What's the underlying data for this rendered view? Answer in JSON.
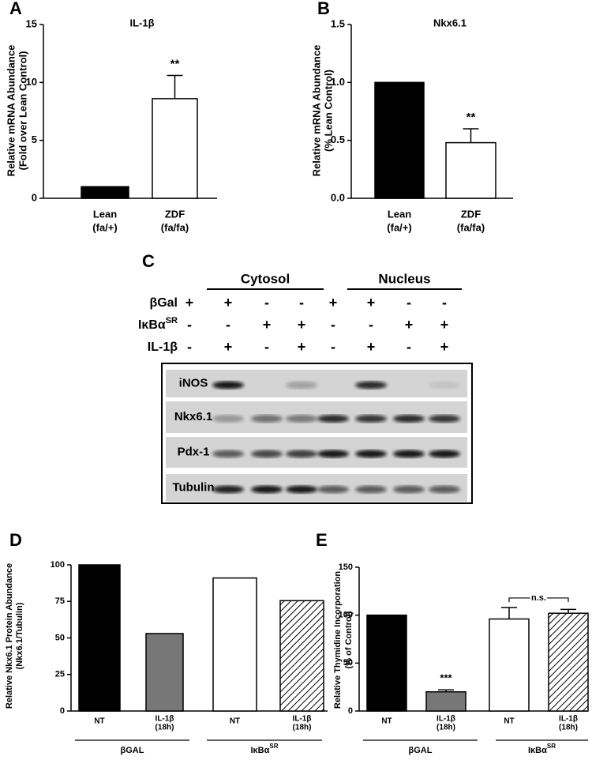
{
  "chart_data": [
    {
      "type": "bar",
      "label": "A",
      "title": "IL-1β",
      "ylabel": [
        "Relative mRNA Abundance",
        "(Fold over Lean Control)"
      ],
      "categories": [
        [
          "Lean",
          "(fa/+)"
        ],
        [
          "ZDF",
          "(fa/fa)"
        ]
      ],
      "values": [
        1,
        8.6
      ],
      "errors": [
        null,
        2.0
      ],
      "colors": [
        "#000000",
        "#ffffff"
      ],
      "hatch": [
        false,
        false
      ],
      "annotations": [
        {
          "index": 1,
          "text": "**"
        }
      ],
      "ylim": [
        0,
        15
      ],
      "yticks": [
        0,
        5,
        10,
        15
      ]
    },
    {
      "type": "bar",
      "label": "B",
      "title": "Nkx6.1",
      "ylabel": [
        "Relative mRNA Abundance",
        "(% Lean Control)"
      ],
      "categories": [
        [
          "Lean",
          "(fa/+)"
        ],
        [
          "ZDF",
          "(fa/fa)"
        ]
      ],
      "values": [
        1.0,
        0.48
      ],
      "errors": [
        null,
        0.12
      ],
      "colors": [
        "#000000",
        "#ffffff"
      ],
      "hatch": [
        false,
        false
      ],
      "annotations": [
        {
          "index": 1,
          "text": "**"
        }
      ],
      "ylim": [
        0,
        1.5
      ],
      "yticks": [
        {
          "value": 0,
          "label": "0.0"
        },
        0.5,
        {
          "value": 1,
          "label": "1.0"
        },
        1.5
      ]
    },
    {
      "type": "bar",
      "label": "D",
      "ylabel": [
        "Relative Nkx6.1 Protein Abundance",
        "(Nkx6.1/Tubulin)"
      ],
      "categories": [
        [
          "NT"
        ],
        [
          "IL-1β",
          "(18h)"
        ],
        [
          "NT"
        ],
        [
          "IL-1β",
          "(18h)"
        ]
      ],
      "values": [
        100,
        53,
        91,
        75.5
      ],
      "colors": [
        "#000000",
        "#777777",
        "#ffffff",
        "#ffffff"
      ],
      "hatch": [
        false,
        false,
        false,
        true
      ],
      "groups": [
        {
          "name": "βGAL"
        },
        {
          "name": "IκBα",
          "sup": "SR"
        }
      ],
      "ylim": [
        0,
        100
      ],
      "yticks": [
        0,
        25,
        50,
        75,
        100
      ]
    },
    {
      "type": "bar",
      "label": "E",
      "ylabel": [
        "Relative Thymidine Incorporation",
        "(% of Control)"
      ],
      "categories": [
        [
          "NT"
        ],
        [
          "IL-1β",
          "(18h)"
        ],
        [
          "NT"
        ],
        [
          "IL-1β",
          "(18h)"
        ]
      ],
      "values": [
        100,
        20,
        96,
        102
      ],
      "errors": [
        null,
        2,
        12,
        4
      ],
      "colors": [
        "#000000",
        "#777777",
        "#ffffff",
        "#ffffff"
      ],
      "hatch": [
        false,
        false,
        false,
        true
      ],
      "groups": [
        {
          "name": "βGAL"
        },
        {
          "name": "IκBα",
          "sup": "SR"
        }
      ],
      "annotations": [
        {
          "index": 1,
          "text": "***"
        },
        {
          "from": 2,
          "to": 3,
          "text": "n.s."
        }
      ],
      "ylim": [
        0,
        150
      ],
      "yticks": [
        0,
        50,
        100,
        150
      ]
    }
  ],
  "blot": {
    "label": "C",
    "fractions": [
      "Cytosol",
      "Nucleus"
    ],
    "conditions": [
      {
        "name": "βGal",
        "signs": [
          "+",
          "+",
          "-",
          "-",
          "+",
          "+",
          "-",
          "-"
        ]
      },
      {
        "name": "IκBα",
        "sup": "SR",
        "signs": [
          "-",
          "-",
          "+",
          "+",
          "-",
          "-",
          "+",
          "+"
        ]
      },
      {
        "name": "IL-1β",
        "signs": [
          "-",
          "+",
          "-",
          "+",
          "-",
          "+",
          "-",
          "+"
        ]
      }
    ],
    "bands": [
      "iNOS",
      "Nkx6.1",
      "Pdx-1",
      "Tubulin"
    ]
  }
}
